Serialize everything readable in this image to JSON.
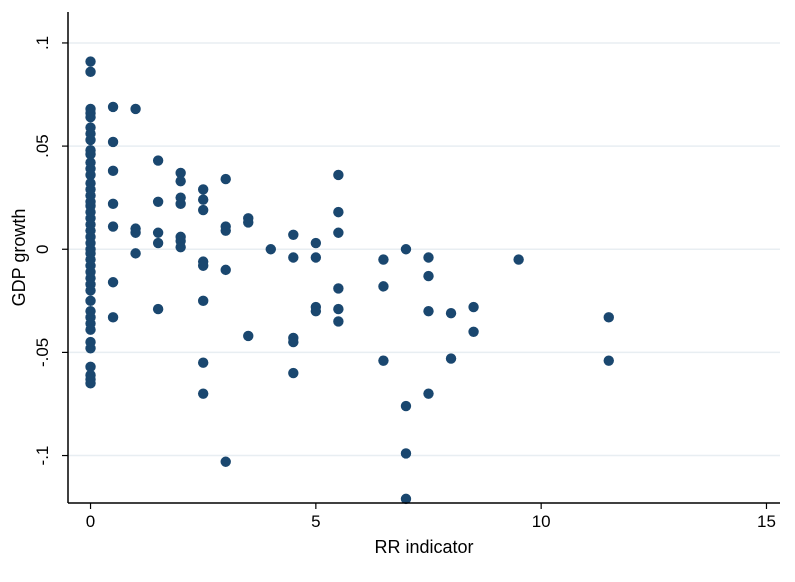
{
  "chart_data": {
    "type": "scatter",
    "title": "",
    "xlabel": "RR indicator",
    "ylabel": "GDP growth",
    "xlim": [
      -0.5,
      15.3
    ],
    "ylim": [
      -0.123,
      0.115
    ],
    "xticks": [
      0,
      5,
      10,
      15
    ],
    "xtick_labels": [
      "0",
      "5",
      "10",
      "15"
    ],
    "yticks": [
      -0.1,
      -0.05,
      0,
      0.05,
      0.1
    ],
    "ytick_labels": [
      "-.1",
      "-.05",
      "0",
      ".05",
      ".1"
    ],
    "grid": "horizontal",
    "marker_color": "#1a476f",
    "points": [
      [
        0,
        0.091
      ],
      [
        0,
        0.086
      ],
      [
        0,
        0.068
      ],
      [
        0,
        0.066
      ],
      [
        0,
        0.064
      ],
      [
        0,
        0.059
      ],
      [
        0,
        0.056
      ],
      [
        0,
        0.053
      ],
      [
        0,
        0.048
      ],
      [
        0,
        0.046
      ],
      [
        0,
        0.042
      ],
      [
        0,
        0.039
      ],
      [
        0,
        0.036
      ],
      [
        0,
        0.032
      ],
      [
        0,
        0.029
      ],
      [
        0,
        0.026
      ],
      [
        0,
        0.023
      ],
      [
        0,
        0.021
      ],
      [
        0,
        0.018
      ],
      [
        0,
        0.015
      ],
      [
        0,
        0.012
      ],
      [
        0,
        0.009
      ],
      [
        0,
        0.006
      ],
      [
        0,
        0.003
      ],
      [
        0,
        0.0
      ],
      [
        0,
        -0.002
      ],
      [
        0,
        -0.005
      ],
      [
        0,
        -0.008
      ],
      [
        0,
        -0.011
      ],
      [
        0,
        -0.014
      ],
      [
        0,
        -0.017
      ],
      [
        0,
        -0.02
      ],
      [
        0,
        -0.025
      ],
      [
        0,
        -0.03
      ],
      [
        0,
        -0.033
      ],
      [
        0,
        -0.036
      ],
      [
        0,
        -0.039
      ],
      [
        0,
        -0.045
      ],
      [
        0,
        -0.048
      ],
      [
        0,
        -0.057
      ],
      [
        0,
        -0.061
      ],
      [
        0,
        -0.063
      ],
      [
        0,
        -0.065
      ],
      [
        0.5,
        0.069
      ],
      [
        0.5,
        0.052
      ],
      [
        0.5,
        0.038
      ],
      [
        0.5,
        0.022
      ],
      [
        0.5,
        0.011
      ],
      [
        0.5,
        -0.016
      ],
      [
        0.5,
        -0.033
      ],
      [
        1,
        0.068
      ],
      [
        1,
        0.01
      ],
      [
        1,
        0.008
      ],
      [
        1,
        -0.002
      ],
      [
        1.5,
        0.043
      ],
      [
        1.5,
        0.023
      ],
      [
        1.5,
        0.008
      ],
      [
        1.5,
        0.003
      ],
      [
        1.5,
        -0.029
      ],
      [
        2,
        0.037
      ],
      [
        2,
        0.033
      ],
      [
        2,
        0.025
      ],
      [
        2,
        0.022
      ],
      [
        2,
        0.006
      ],
      [
        2,
        0.004
      ],
      [
        2,
        0.001
      ],
      [
        2.5,
        0.029
      ],
      [
        2.5,
        0.024
      ],
      [
        2.5,
        0.019
      ],
      [
        2.5,
        -0.006
      ],
      [
        2.5,
        -0.008
      ],
      [
        2.5,
        -0.025
      ],
      [
        2.5,
        -0.055
      ],
      [
        2.5,
        -0.07
      ],
      [
        3,
        0.034
      ],
      [
        3,
        0.011
      ],
      [
        3,
        0.009
      ],
      [
        3,
        -0.01
      ],
      [
        3,
        -0.103
      ],
      [
        3.5,
        0.015
      ],
      [
        3.5,
        0.013
      ],
      [
        3.5,
        -0.042
      ],
      [
        4,
        0.0
      ],
      [
        4.5,
        0.007
      ],
      [
        4.5,
        -0.004
      ],
      [
        4.5,
        -0.043
      ],
      [
        4.5,
        -0.045
      ],
      [
        4.5,
        -0.06
      ],
      [
        5,
        0.003
      ],
      [
        5,
        -0.004
      ],
      [
        5,
        -0.028
      ],
      [
        5,
        -0.03
      ],
      [
        5.5,
        0.036
      ],
      [
        5.5,
        0.018
      ],
      [
        5.5,
        0.008
      ],
      [
        5.5,
        -0.019
      ],
      [
        5.5,
        -0.029
      ],
      [
        5.5,
        -0.035
      ],
      [
        6.5,
        -0.005
      ],
      [
        6.5,
        -0.018
      ],
      [
        6.5,
        -0.054
      ],
      [
        7,
        0.0
      ],
      [
        7,
        -0.076
      ],
      [
        7,
        -0.099
      ],
      [
        7,
        -0.121
      ],
      [
        7.5,
        -0.004
      ],
      [
        7.5,
        -0.013
      ],
      [
        7.5,
        -0.03
      ],
      [
        7.5,
        -0.07
      ],
      [
        8,
        -0.031
      ],
      [
        8,
        -0.053
      ],
      [
        8.5,
        -0.028
      ],
      [
        8.5,
        -0.04
      ],
      [
        9.5,
        -0.005
      ],
      [
        11.5,
        -0.033
      ],
      [
        11.5,
        -0.054
      ]
    ]
  }
}
